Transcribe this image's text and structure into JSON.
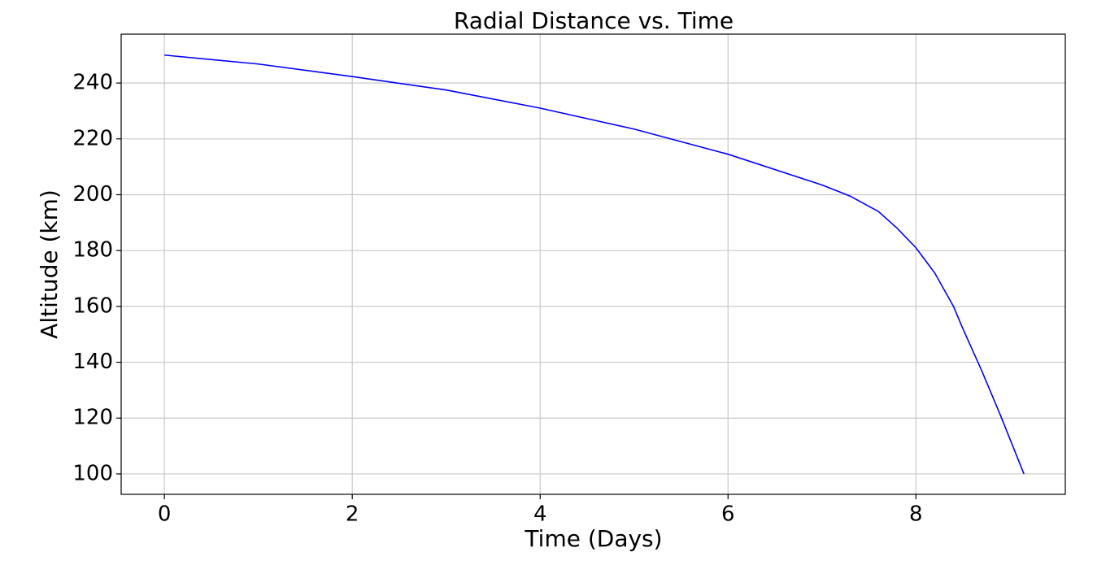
{
  "chart_data": {
    "type": "line",
    "title": "Radial Distance vs. Time",
    "x_label": "Time (Days)",
    "y_label": "Altitude (km)",
    "x": [
      0,
      1,
      2,
      3,
      4,
      5,
      6,
      7,
      7.3,
      7.6,
      7.8,
      8,
      8.2,
      8.4,
      8.5,
      8.7,
      8.9,
      9.15
    ],
    "series": [
      {
        "name": "Altitude",
        "color": "#0000ff",
        "values": [
          250,
          246.8,
          242.3,
          237.5,
          231,
          223.5,
          214.5,
          203.5,
          199.5,
          194,
          188,
          181,
          172,
          160,
          152,
          137,
          121,
          100
        ]
      }
    ],
    "xlim": [
      -0.46,
      9.59
    ],
    "xticks": [
      0,
      2,
      4,
      6,
      8
    ],
    "ylim": [
      92.7,
      257.5
    ],
    "yticks": [
      100,
      120,
      140,
      160,
      180,
      200,
      220,
      240
    ],
    "grid": true
  }
}
